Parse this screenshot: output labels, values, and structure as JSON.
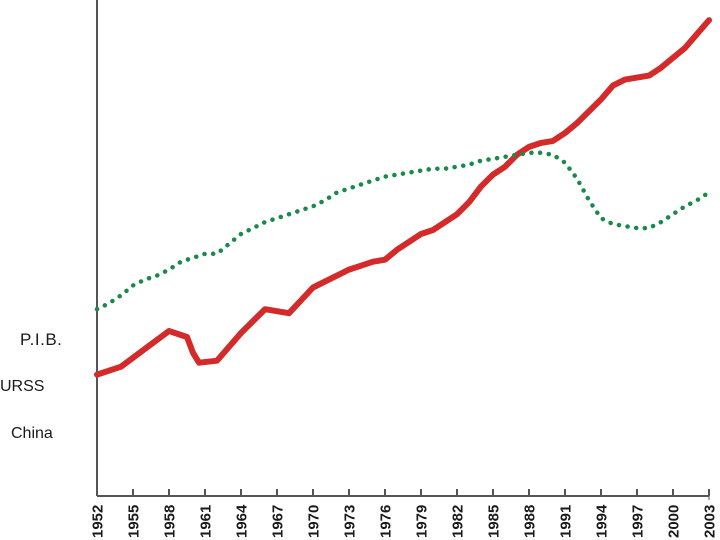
{
  "labels": {
    "pib": "P.I.B.",
    "urss": "URSS",
    "china": "China"
  },
  "colors": {
    "china": "#d42a2a",
    "urss": "#1a8a4a",
    "axis": "#555555",
    "text": "#1a1a1a"
  },
  "chart_data": {
    "type": "line",
    "title": "",
    "xlabel": "",
    "ylabel": "P.I.B.",
    "x_ticks": [
      "1952",
      "1955",
      "1958",
      "1961",
      "1964",
      "1967",
      "1970",
      "1973",
      "1976",
      "1979",
      "1982",
      "1985",
      "1988",
      "1991",
      "1994",
      "1997",
      "2000",
      "2003"
    ],
    "xlim": [
      1952,
      2003
    ],
    "ylim": [
      0,
      100
    ],
    "y_ticks_shown": false,
    "grid": false,
    "legend": "none",
    "series": [
      {
        "name": "China",
        "style": "solid",
        "x": [
          1952,
          1954,
          1956,
          1958,
          1959.5,
          1960,
          1960.5,
          1962,
          1964,
          1966,
          1968,
          1970,
          1972,
          1973,
          1974,
          1975,
          1976,
          1977,
          1979,
          1980,
          1982,
          1983,
          1984,
          1985,
          1986,
          1987,
          1988,
          1989,
          1990,
          1991,
          1992,
          1993,
          1994,
          1995,
          1996,
          1997,
          1998,
          1999,
          2000,
          2001,
          2002,
          2003
        ],
        "y": [
          14.5,
          16.5,
          21,
          25.5,
          24,
          20,
          17.5,
          18,
          25,
          31,
          30,
          36.5,
          39.5,
          41,
          42,
          43,
          43.5,
          46,
          50,
          51,
          55,
          58,
          62,
          65,
          67,
          70,
          72,
          73,
          73.5,
          75.5,
          78,
          81,
          84,
          87.5,
          89,
          89.5,
          90,
          92,
          94.5,
          97,
          100.5,
          104
        ]
      },
      {
        "name": "URSS",
        "style": "dotted",
        "x": [
          1952,
          1953,
          1954,
          1955,
          1956,
          1957,
          1958,
          1959,
          1960,
          1961,
          1962,
          1963,
          1964,
          1965,
          1966,
          1967,
          1968,
          1969,
          1970,
          1971,
          1972,
          1973,
          1974,
          1975,
          1976,
          1977,
          1978,
          1979,
          1980,
          1981,
          1982,
          1983,
          1984,
          1985,
          1986,
          1987,
          1988,
          1989,
          1990,
          1991,
          1992,
          1993,
          1994,
          1995,
          1996,
          1997,
          1998,
          1999,
          2000,
          2001,
          2002,
          2003
        ],
        "y": [
          31,
          32.5,
          34.5,
          37,
          38.5,
          39.5,
          41,
          43,
          44,
          45,
          45,
          47.5,
          50,
          51.5,
          53,
          54,
          55,
          56,
          57,
          58.5,
          60.5,
          61.5,
          62.5,
          63.5,
          64.5,
          65,
          65.5,
          66,
          66.5,
          66.5,
          67,
          67.5,
          68.5,
          69,
          69.5,
          70,
          70.5,
          70.5,
          70,
          68,
          64,
          58.5,
          54,
          52.5,
          52,
          51.5,
          51.5,
          53,
          55,
          57,
          58.5,
          60.5
        ]
      }
    ]
  }
}
